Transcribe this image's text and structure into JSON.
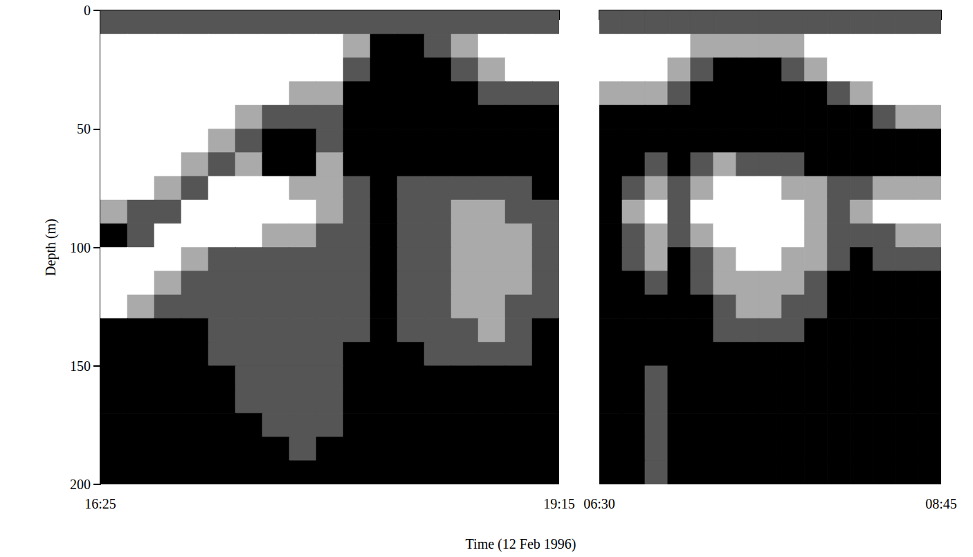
{
  "chart_data": {
    "type": "heatmap",
    "xlabel": "Time (12 Feb 1996)",
    "ylabel": "Depth (m)",
    "ylim": [
      0,
      200
    ],
    "yticks": [
      0,
      50,
      100,
      150,
      200
    ],
    "y_bins": [
      0,
      10,
      20,
      30,
      40,
      50,
      60,
      70,
      80,
      90,
      100,
      110,
      120,
      130,
      140,
      150,
      160,
      170,
      180,
      190,
      200
    ],
    "panels": [
      {
        "xlim": [
          985,
          1155
        ],
        "xticks": [
          {
            "value": 985,
            "label": "16:25"
          },
          {
            "value": 1155,
            "label": "19:15"
          }
        ],
        "x_bins": [
          985,
          995,
          1005,
          1015,
          1025,
          1035,
          1045,
          1055,
          1065,
          1075,
          1085,
          1095,
          1105,
          1115,
          1125,
          1135,
          1145,
          1155
        ],
        "cells": [
          [
            2,
            2,
            2,
            2,
            2,
            2,
            2,
            2,
            2,
            2,
            2,
            2,
            2,
            2,
            2,
            2,
            2
          ],
          [
            0,
            0,
            0,
            0,
            0,
            0,
            0,
            0,
            0,
            1,
            3,
            3,
            2,
            1,
            0,
            0,
            0
          ],
          [
            0,
            0,
            0,
            0,
            0,
            0,
            0,
            0,
            0,
            2,
            3,
            3,
            3,
            2,
            1,
            0,
            0
          ],
          [
            0,
            0,
            0,
            0,
            0,
            0,
            0,
            1,
            1,
            3,
            3,
            3,
            3,
            3,
            2,
            2,
            2
          ],
          [
            0,
            0,
            0,
            0,
            0,
            1,
            2,
            2,
            2,
            3,
            3,
            3,
            3,
            3,
            3,
            3,
            3
          ],
          [
            0,
            0,
            0,
            0,
            1,
            2,
            3,
            3,
            2,
            3,
            3,
            3,
            3,
            3,
            3,
            3,
            3
          ],
          [
            0,
            0,
            0,
            1,
            2,
            1,
            3,
            3,
            1,
            3,
            3,
            3,
            3,
            3,
            3,
            3,
            3
          ],
          [
            0,
            0,
            1,
            2,
            0,
            0,
            0,
            1,
            1,
            2,
            3,
            2,
            2,
            2,
            2,
            2,
            3
          ],
          [
            1,
            2,
            2,
            0,
            0,
            0,
            0,
            0,
            1,
            2,
            3,
            2,
            2,
            1,
            1,
            2,
            2
          ],
          [
            3,
            2,
            0,
            0,
            0,
            0,
            1,
            1,
            2,
            2,
            3,
            2,
            2,
            1,
            1,
            1,
            2
          ],
          [
            0,
            0,
            0,
            1,
            2,
            2,
            2,
            2,
            2,
            2,
            3,
            2,
            2,
            1,
            1,
            1,
            2
          ],
          [
            0,
            0,
            1,
            2,
            2,
            2,
            2,
            2,
            2,
            2,
            3,
            2,
            2,
            1,
            1,
            1,
            2
          ],
          [
            0,
            1,
            2,
            2,
            2,
            2,
            2,
            2,
            2,
            2,
            3,
            2,
            2,
            1,
            1,
            2,
            2
          ],
          [
            3,
            3,
            3,
            3,
            2,
            2,
            2,
            2,
            2,
            2,
            3,
            2,
            2,
            2,
            1,
            2,
            3
          ],
          [
            3,
            3,
            3,
            3,
            2,
            2,
            2,
            2,
            2,
            3,
            3,
            3,
            2,
            2,
            2,
            2,
            3
          ],
          [
            3,
            3,
            3,
            3,
            3,
            2,
            2,
            2,
            2,
            3,
            3,
            3,
            3,
            3,
            3,
            3,
            3
          ],
          [
            3,
            3,
            3,
            3,
            3,
            2,
            2,
            2,
            2,
            3,
            3,
            3,
            3,
            3,
            3,
            3,
            3
          ],
          [
            3,
            3,
            3,
            3,
            3,
            3,
            2,
            2,
            2,
            3,
            3,
            3,
            3,
            3,
            3,
            3,
            3
          ],
          [
            3,
            3,
            3,
            3,
            3,
            3,
            3,
            2,
            3,
            3,
            3,
            3,
            3,
            3,
            3,
            3,
            3
          ],
          [
            3,
            3,
            3,
            3,
            3,
            3,
            3,
            3,
            3,
            3,
            3,
            3,
            3,
            3,
            3,
            3,
            3
          ]
        ]
      },
      {
        "xlim": [
          390,
          525
        ],
        "xticks": [
          {
            "value": 390,
            "label": "06:30"
          },
          {
            "value": 525,
            "label": "08:45"
          }
        ],
        "x_bins": [
          390,
          399,
          408,
          417,
          426,
          435,
          444,
          453,
          462,
          471,
          480,
          489,
          498,
          507,
          516,
          525
        ],
        "cells": [
          [
            2,
            2,
            2,
            2,
            2,
            2,
            2,
            2,
            2,
            2,
            2,
            2,
            2,
            2,
            2
          ],
          [
            0,
            0,
            0,
            0,
            1,
            1,
            1,
            1,
            1,
            0,
            0,
            0,
            0,
            0,
            0
          ],
          [
            0,
            0,
            0,
            1,
            2,
            3,
            3,
            3,
            2,
            1,
            0,
            0,
            0,
            0,
            0
          ],
          [
            1,
            1,
            1,
            2,
            3,
            3,
            3,
            3,
            3,
            3,
            2,
            1,
            0,
            0,
            0
          ],
          [
            3,
            3,
            3,
            3,
            3,
            3,
            3,
            3,
            3,
            3,
            3,
            3,
            2,
            1,
            1
          ],
          [
            3,
            3,
            3,
            3,
            3,
            3,
            3,
            3,
            3,
            3,
            3,
            3,
            3,
            3,
            3
          ],
          [
            3,
            3,
            2,
            3,
            2,
            1,
            2,
            2,
            2,
            3,
            3,
            3,
            3,
            3,
            3
          ],
          [
            3,
            2,
            1,
            2,
            1,
            0,
            0,
            0,
            1,
            1,
            2,
            2,
            1,
            1,
            1
          ],
          [
            3,
            1,
            0,
            2,
            0,
            0,
            0,
            0,
            0,
            1,
            2,
            1,
            0,
            0,
            0
          ],
          [
            3,
            2,
            1,
            2,
            1,
            0,
            0,
            0,
            0,
            1,
            2,
            2,
            2,
            1,
            1
          ],
          [
            3,
            2,
            1,
            3,
            2,
            1,
            0,
            0,
            1,
            1,
            2,
            3,
            2,
            2,
            2
          ],
          [
            3,
            3,
            2,
            3,
            2,
            1,
            1,
            1,
            1,
            2,
            3,
            3,
            3,
            3,
            3
          ],
          [
            3,
            3,
            3,
            3,
            3,
            2,
            1,
            1,
            2,
            2,
            3,
            3,
            3,
            3,
            3
          ],
          [
            3,
            3,
            3,
            3,
            3,
            2,
            2,
            2,
            2,
            3,
            3,
            3,
            3,
            3,
            3
          ],
          [
            3,
            3,
            3,
            3,
            3,
            3,
            3,
            3,
            3,
            3,
            3,
            3,
            3,
            3,
            3
          ],
          [
            3,
            3,
            2,
            3,
            3,
            3,
            3,
            3,
            3,
            3,
            3,
            3,
            3,
            3,
            3
          ],
          [
            3,
            3,
            2,
            3,
            3,
            3,
            3,
            3,
            3,
            3,
            3,
            3,
            3,
            3,
            3
          ],
          [
            3,
            3,
            2,
            3,
            3,
            3,
            3,
            3,
            3,
            3,
            3,
            3,
            3,
            3,
            3
          ],
          [
            3,
            3,
            2,
            3,
            3,
            3,
            3,
            3,
            3,
            3,
            3,
            3,
            3,
            3,
            3
          ],
          [
            3,
            3,
            2,
            3,
            3,
            3,
            3,
            3,
            3,
            3,
            3,
            3,
            3,
            3,
            3
          ]
        ]
      }
    ]
  }
}
